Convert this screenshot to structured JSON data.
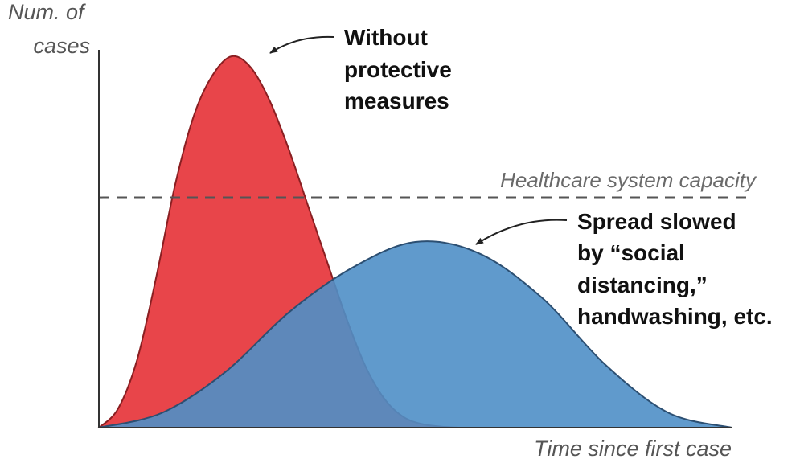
{
  "chart_data": {
    "type": "area",
    "title": "",
    "ylabel_lines": [
      "Num. of",
      "cases"
    ],
    "xlabel": "Time since first case",
    "x_range": [
      0,
      100
    ],
    "y_range": [
      0,
      100
    ],
    "capacity": {
      "label": "Healthcare system capacity",
      "value": 62
    },
    "series": [
      {
        "key": "without",
        "color": "#e8454a",
        "annotation": [
          "Without",
          "protective",
          "measures"
        ],
        "x": [
          0,
          3,
          6,
          9,
          12,
          15,
          18,
          21,
          24,
          27,
          30,
          33,
          36,
          39,
          42,
          45,
          48,
          51,
          54,
          57
        ],
        "y": [
          0,
          5,
          18,
          40,
          65,
          84,
          95,
          100,
          97,
          88,
          75,
          60,
          45,
          30,
          17,
          8,
          3,
          1,
          0.3,
          0
        ]
      },
      {
        "key": "with",
        "color": "#4f8fc6",
        "annotation": [
          "Spread slowed",
          "by “social",
          "distancing,”",
          "handwashing, etc."
        ],
        "x": [
          0,
          10,
          20,
          30,
          40,
          50,
          60,
          70,
          80,
          90,
          100
        ],
        "y": [
          0,
          4,
          15,
          31,
          43,
          50,
          47,
          35,
          17,
          4,
          0
        ]
      }
    ]
  }
}
